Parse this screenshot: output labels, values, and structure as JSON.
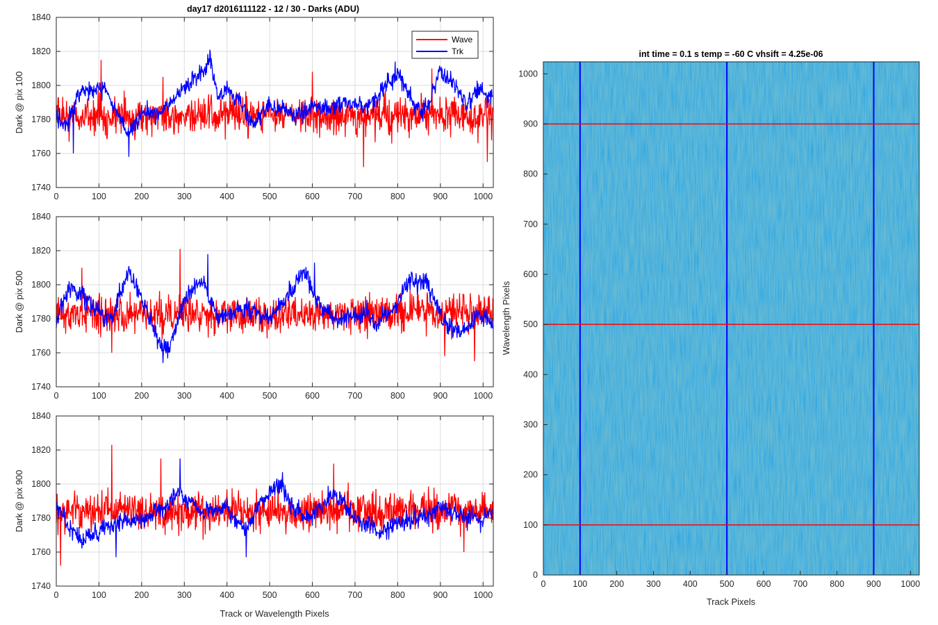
{
  "figure": {
    "left_title": "day17 d2016111122 - 12 / 30 - Darks (ADU)",
    "shared_xlabel": "Track or Wavelength Pixels",
    "legend": [
      "Wave",
      "Trk"
    ],
    "colors": {
      "wave": "#ff0000",
      "trk": "#0000ff",
      "grid": "#dcdcdc",
      "axis": "#262626"
    }
  },
  "chart_data": [
    {
      "type": "line",
      "title": "day17 d2016111122 - 12 / 30 - Darks (ADU)",
      "xlabel": "",
      "ylabel": "Dark @ pix 100",
      "xlim": [
        0,
        1024
      ],
      "ylim": [
        1740,
        1840
      ],
      "xticks": [
        0,
        100,
        200,
        300,
        400,
        500,
        600,
        700,
        800,
        900,
        1000
      ],
      "yticks": [
        1740,
        1760,
        1780,
        1800,
        1820,
        1840
      ],
      "grid": true,
      "legend_position": "top-right",
      "series": [
        {
          "name": "Wave",
          "color": "#ff0000",
          "mean": 1782,
          "spread": 9,
          "peaks": [
            [
              105,
              1815
            ],
            [
              250,
              1805
            ],
            [
              600,
              1808
            ],
            [
              880,
              1810
            ]
          ],
          "troughs": [
            [
              720,
              1752
            ],
            [
              1010,
              1755
            ]
          ]
        },
        {
          "name": "Trk",
          "color": "#0000ff",
          "mean": 1786,
          "trend_x": [
            0,
            20,
            50,
            80,
            110,
            150,
            170,
            200,
            250,
            290,
            330,
            350,
            360,
            380,
            400,
            430,
            460,
            500,
            550,
            590,
            630,
            660,
            700,
            740,
            770,
            800,
            840,
            870,
            900,
            930,
            960,
            990,
            1024
          ],
          "trend_y": [
            1782,
            1773,
            1795,
            1797,
            1800,
            1780,
            1770,
            1784,
            1785,
            1796,
            1805,
            1810,
            1815,
            1792,
            1797,
            1790,
            1778,
            1788,
            1783,
            1786,
            1787,
            1788,
            1790,
            1790,
            1800,
            1808,
            1787,
            1788,
            1810,
            1802,
            1790,
            1799,
            1790
          ],
          "peaks": [
            [
              360,
              1821
            ]
          ],
          "troughs": [
            [
              40,
              1760
            ],
            [
              170,
              1758
            ]
          ]
        }
      ]
    },
    {
      "type": "line",
      "title": "",
      "xlabel": "",
      "ylabel": "Dark @ pix 500",
      "xlim": [
        0,
        1024
      ],
      "ylim": [
        1740,
        1840
      ],
      "xticks": [
        0,
        100,
        200,
        300,
        400,
        500,
        600,
        700,
        800,
        900,
        1000
      ],
      "yticks": [
        1740,
        1760,
        1780,
        1800,
        1820,
        1840
      ],
      "grid": true,
      "series": [
        {
          "name": "Wave",
          "color": "#ff0000",
          "mean": 1783,
          "spread": 9,
          "peaks": [
            [
              290,
              1821
            ],
            [
              60,
              1810
            ]
          ],
          "troughs": [
            [
              130,
              1760
            ],
            [
              910,
              1758
            ],
            [
              980,
              1755
            ]
          ]
        },
        {
          "name": "Trk",
          "color": "#0000ff",
          "mean": 1785,
          "trend_x": [
            0,
            30,
            60,
            90,
            130,
            170,
            200,
            240,
            260,
            300,
            340,
            380,
            430,
            470,
            500,
            530,
            580,
            620,
            660,
            700,
            750,
            790,
            830,
            870,
            900,
            950,
            990,
            1024
          ],
          "trend_y": [
            1778,
            1800,
            1795,
            1785,
            1782,
            1810,
            1790,
            1768,
            1762,
            1790,
            1805,
            1780,
            1787,
            1785,
            1782,
            1790,
            1808,
            1785,
            1780,
            1782,
            1778,
            1786,
            1803,
            1800,
            1781,
            1772,
            1782,
            1778
          ],
          "peaks": [
            [
              355,
              1818
            ],
            [
              605,
              1813
            ]
          ],
          "troughs": [
            [
              250,
              1754
            ]
          ]
        }
      ]
    },
    {
      "type": "line",
      "title": "",
      "xlabel": "Track or Wavelength Pixels",
      "ylabel": "Dark @ pix 900",
      "xlim": [
        0,
        1024
      ],
      "ylim": [
        1740,
        1840
      ],
      "xticks": [
        0,
        100,
        200,
        300,
        400,
        500,
        600,
        700,
        800,
        900,
        1000
      ],
      "yticks": [
        1740,
        1760,
        1780,
        1800,
        1820,
        1840
      ],
      "grid": true,
      "series": [
        {
          "name": "Wave",
          "color": "#ff0000",
          "mean": 1784,
          "spread": 9,
          "peaks": [
            [
              130,
              1823
            ],
            [
              245,
              1815
            ],
            [
              650,
              1812
            ]
          ],
          "troughs": [
            [
              10,
              1752
            ],
            [
              955,
              1760
            ]
          ]
        },
        {
          "name": "Trk",
          "color": "#0000ff",
          "mean": 1782,
          "trend_x": [
            0,
            30,
            60,
            100,
            130,
            170,
            200,
            250,
            280,
            320,
            360,
            400,
            440,
            480,
            520,
            560,
            600,
            650,
            700,
            750,
            800,
            850,
            900,
            950,
            1000,
            1024
          ],
          "trend_y": [
            1788,
            1775,
            1768,
            1772,
            1775,
            1778,
            1780,
            1785,
            1795,
            1790,
            1783,
            1787,
            1772,
            1790,
            1800,
            1785,
            1782,
            1795,
            1780,
            1772,
            1776,
            1780,
            1785,
            1782,
            1779,
            1783
          ],
          "peaks": [
            [
              290,
              1815
            ],
            [
              530,
              1807
            ]
          ],
          "troughs": [
            [
              140,
              1757
            ],
            [
              445,
              1757
            ]
          ]
        }
      ]
    },
    {
      "type": "heatmap",
      "title": "int time = 0.1 s   temp = -60 C   vhsift = 4.25e-06",
      "xlabel": "Track Pixels",
      "ylabel": "Wavelength Pixels",
      "xlim": [
        0,
        1024
      ],
      "ylim": [
        0,
        1024
      ],
      "xticks": [
        0,
        100,
        200,
        300,
        400,
        500,
        600,
        700,
        800,
        900,
        1000
      ],
      "yticks": [
        0,
        100,
        200,
        300,
        400,
        500,
        600,
        700,
        800,
        900,
        1000
      ],
      "colormap": "parula",
      "base_color": "#1c9fd3",
      "vertical_lines": {
        "color": "#0000ff",
        "x": [
          100,
          500,
          900
        ]
      },
      "horizontal_lines": {
        "color": "#ff0000",
        "y": [
          100,
          500,
          900
        ]
      }
    }
  ]
}
